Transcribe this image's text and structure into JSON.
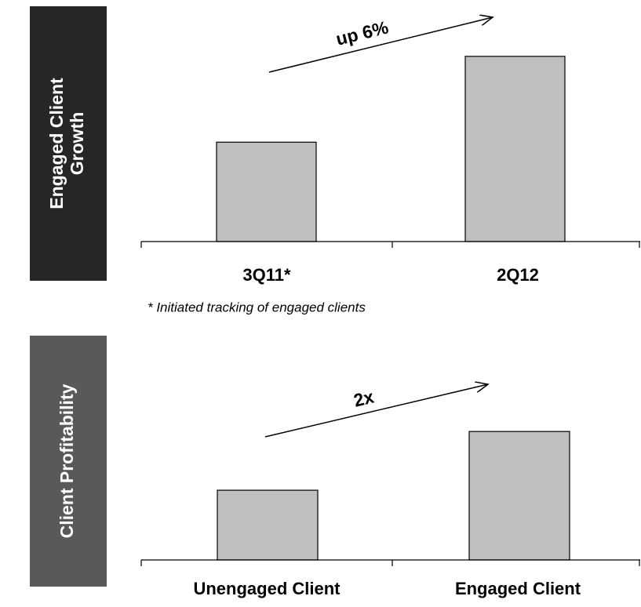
{
  "chart_data": [
    {
      "type": "bar",
      "title_lines": [
        "Engaged Client",
        "Growth"
      ],
      "categories": [
        "3Q11*",
        "2Q12"
      ],
      "values": [
        44,
        82
      ],
      "ylim": [
        0,
        100
      ],
      "color": "#bfbfbf",
      "panel_color": "#262626",
      "annotation": "up 6%",
      "footnote": "* Initiated tracking of engaged clients"
    },
    {
      "type": "bar",
      "title_lines": [
        "Client Profitability"
      ],
      "categories": [
        "Unengaged Client",
        "Engaged Client"
      ],
      "values": [
        38,
        70
      ],
      "ylim": [
        0,
        100
      ],
      "color": "#bfbfbf",
      "panel_color": "#595959",
      "annotation": "2x"
    }
  ]
}
